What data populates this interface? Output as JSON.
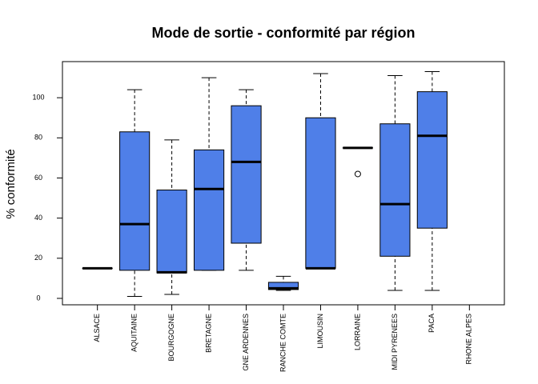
{
  "chart_data": {
    "type": "boxplot",
    "title": "Mode de sortie - conformité par région",
    "y_label": "% conformité",
    "categories": [
      "ALSACE",
      "AQUITAINE",
      "BOURGOGNE",
      "BRETAGNE",
      "GNE ARDENNES",
      "RANCHE COMTE",
      "LIMOUSIN",
      "LORRAINE",
      "MIDI PYRENEES",
      "PACA",
      "RHONE ALPES"
    ],
    "min": [
      15,
      1,
      2,
      14,
      14,
      4,
      15,
      75,
      4,
      4,
      null
    ],
    "q1": [
      15,
      14,
      12.7,
      14,
      27.5,
      4.4,
      15,
      75,
      21,
      35,
      null
    ],
    "median": [
      15,
      37,
      13,
      54.5,
      68,
      5,
      15,
      75,
      47,
      81,
      null
    ],
    "q3": [
      15,
      83,
      54,
      74,
      96,
      8,
      90,
      75,
      87,
      103,
      null
    ],
    "max": [
      15,
      104,
      79,
      110,
      104,
      11,
      112,
      75,
      111,
      113,
      null
    ],
    "outliers": [
      [],
      [],
      [],
      [],
      [],
      [],
      [],
      [
        62
      ],
      [],
      [],
      []
    ],
    "color": "#4f7fe8",
    "ylim": [
      -3.2,
      118
    ],
    "yticks": [
      0,
      20,
      40,
      60,
      80,
      100
    ]
  }
}
